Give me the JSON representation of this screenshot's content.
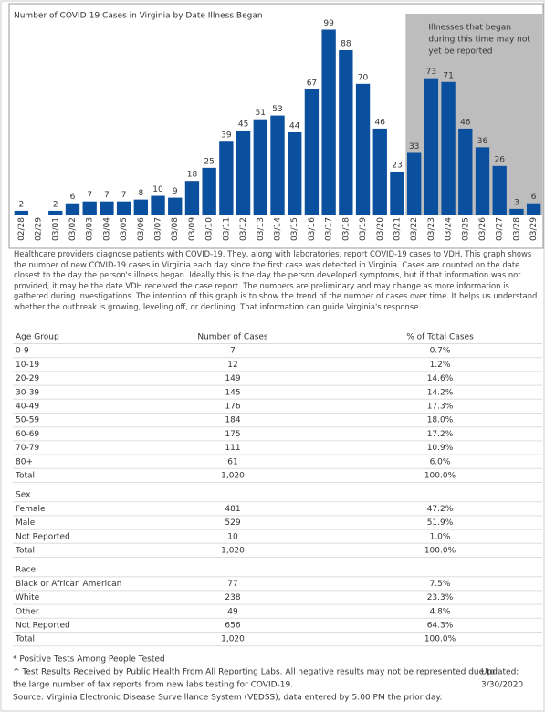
{
  "chart_data": {
    "type": "bar",
    "title": "Number of COVID-19 Cases in Virginia by Date Illness Began",
    "categories": [
      "02/28",
      "02/29",
      "03/01",
      "03/02",
      "03/03",
      "03/04",
      "03/05",
      "03/06",
      "03/07",
      "03/08",
      "03/09",
      "03/10",
      "03/11",
      "03/12",
      "03/13",
      "03/14",
      "03/15",
      "03/16",
      "03/17",
      "03/18",
      "03/19",
      "03/20",
      "03/21",
      "03/22",
      "03/23",
      "03/24",
      "03/25",
      "03/26",
      "03/27",
      "03/28",
      "03/29"
    ],
    "values": [
      2,
      null,
      2,
      6,
      7,
      7,
      7,
      8,
      10,
      9,
      18,
      25,
      39,
      45,
      51,
      53,
      44,
      67,
      99,
      88,
      70,
      46,
      23,
      33,
      73,
      71,
      46,
      36,
      26,
      3,
      6
    ],
    "color": "#0b4f9f",
    "ylim": [
      0,
      110
    ],
    "annotation": {
      "lines": [
        "Illnesses that began",
        "during this time may not",
        "yet be reported"
      ],
      "from": "03/22",
      "to": "03/29",
      "color": "#bdbdbd"
    }
  },
  "description": "Healthcare providers diagnose patients with COVID-19. They, along with laboratories, report COVID-19 cases to VDH. This graph shows the number of new COVID-19 cases in Virginia each day since the first case was detected in Virginia. Cases are counted on the date closest to the day the person's illness began. Ideally this is the day the person developed  symptoms, but if that information was not provided, it may be the date VDH received the case report. The numbers are preliminary and may change as more information is gathered during investigations. The intention of this graph is to show the trend of the number of cases over time. It helps us understand whether the outbreak is growing, leveling off, or declining. That information can guide Virginia's response.",
  "tables": [
    {
      "headers": [
        "Age Group",
        "Number of Cases",
        "% of Total Cases"
      ],
      "rows": [
        [
          "0-9",
          "7",
          "0.7%"
        ],
        [
          "10-19",
          "12",
          "1.2%"
        ],
        [
          "20-29",
          "149",
          "14.6%"
        ],
        [
          "30-39",
          "145",
          "14.2%"
        ],
        [
          "40-49",
          "176",
          "17.3%"
        ],
        [
          "50-59",
          "184",
          "18.0%"
        ],
        [
          "60-69",
          "175",
          "17.2%"
        ],
        [
          "70-79",
          "111",
          "10.9%"
        ],
        [
          "80+",
          "61",
          "6.0%"
        ],
        [
          "Total",
          "1,020",
          "100.0%"
        ]
      ]
    },
    {
      "title": "Sex",
      "rows": [
        [
          "Female",
          "481",
          "47.2%"
        ],
        [
          "Male",
          "529",
          "51.9%"
        ],
        [
          "Not Reported",
          "10",
          "1.0%"
        ],
        [
          "Total",
          "1,020",
          "100.0%"
        ]
      ]
    },
    {
      "title": "Race",
      "rows": [
        [
          "Black or African American",
          "77",
          "7.5%"
        ],
        [
          "White",
          "238",
          "23.3%"
        ],
        [
          "Other",
          "49",
          "4.8%"
        ],
        [
          "Not Reported",
          "656",
          "64.3%"
        ],
        [
          "Total",
          "1,020",
          "100.0%"
        ]
      ]
    }
  ],
  "footnotes": [
    "* Positive Tests Among People Tested",
    "^ Test Results Received by Public Health From All Reporting Labs.  All negative results may not be represented due to",
    "the large number of fax reports from new labs testing for COVID-19.",
    "Source: Virginia Electronic Disease Surveillance System (VEDSS), data entered by 5:00 PM the prior day."
  ],
  "updated": [
    "Updated:",
    "3/30/2020"
  ]
}
